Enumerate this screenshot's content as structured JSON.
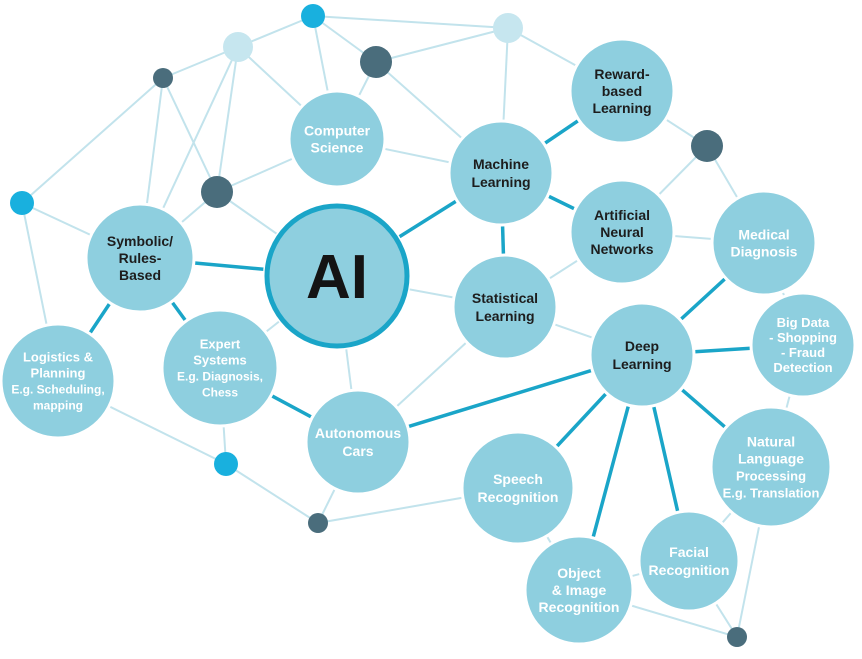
{
  "colors": {
    "node_fill": "#8ecfdf",
    "node_stroke": "#ffffff",
    "center_stroke": "#1aa5c8",
    "edge_light": "#c2e3ec",
    "edge_strong": "#1aa5c8",
    "dot_dark": "#4a6d7c",
    "dot_bright": "#19b0de",
    "dot_pale": "#c6e6ef"
  },
  "nodes": {
    "ai": {
      "label": "AI"
    },
    "computer_science": {
      "lines": [
        "Computer",
        "Science"
      ]
    },
    "machine_learning": {
      "lines": [
        "Machine",
        "Learning"
      ]
    },
    "reward_based": {
      "lines": [
        "Reward-",
        "based",
        "Learning"
      ]
    },
    "artificial_neural": {
      "lines": [
        "Artificial",
        "Neural",
        "Networks"
      ]
    },
    "medical_diagnosis": {
      "lines": [
        "Medical",
        "Diagnosis"
      ]
    },
    "symbolic": {
      "lines": [
        "Symbolic/",
        "Rules-",
        "Based"
      ]
    },
    "statistical": {
      "lines": [
        "Statistical",
        "Learning"
      ]
    },
    "deep_learning": {
      "lines": [
        "Deep",
        "Learning"
      ]
    },
    "big_data": {
      "lines": [
        "Big Data",
        "- Shopping",
        "- Fraud",
        "Detection"
      ]
    },
    "logistics": {
      "lines": [
        "Logistics &",
        "Planning",
        "E.g. Scheduling,",
        "mapping"
      ]
    },
    "expert_systems": {
      "lines": [
        "Expert",
        "Systems",
        "E.g. Diagnosis,",
        "Chess"
      ]
    },
    "autonomous_cars": {
      "lines": [
        "Autonomous",
        "Cars"
      ]
    },
    "speech": {
      "lines": [
        "Speech",
        "Recognition"
      ]
    },
    "nlp": {
      "lines": [
        "Natural",
        "Language",
        "Processing",
        "E.g. Translation"
      ]
    },
    "facial": {
      "lines": [
        "Facial",
        "Recognition"
      ]
    },
    "object_image": {
      "lines": [
        "Object",
        "& Image",
        "Recognition"
      ]
    }
  }
}
